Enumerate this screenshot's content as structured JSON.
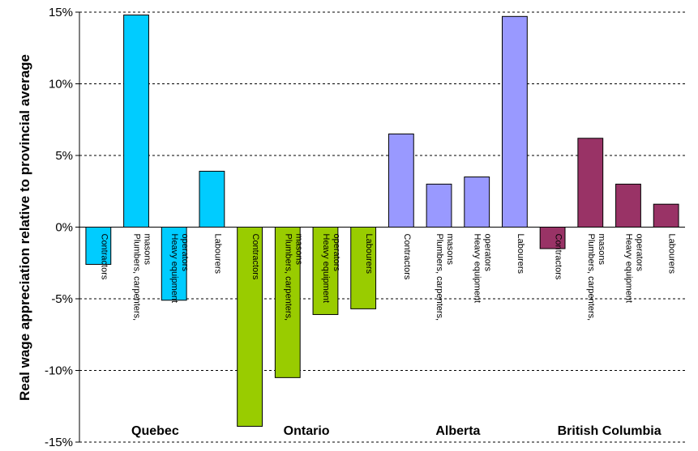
{
  "chart_data": {
    "type": "bar",
    "ylabel": "Real wage appreciation relative to provincial average",
    "xlabel": "",
    "title": "",
    "ylim": [
      -15,
      15
    ],
    "yticks": [
      15,
      10,
      5,
      0,
      -5,
      -10,
      -15
    ],
    "ytick_labels": [
      "15%",
      "10%",
      "5%",
      "0%",
      "-5%",
      "-10%",
      "-15%"
    ],
    "grid": true,
    "groups": [
      {
        "name": "Quebec",
        "color": "#00CCFF",
        "categories": [
          [
            "Contractors"
          ],
          [
            "Plumbers, carpenters,",
            "masons"
          ],
          [
            "Heavy equipment",
            "operators"
          ],
          [
            "Labourers"
          ]
        ],
        "values": [
          -2.6,
          14.8,
          -5.1,
          3.9
        ]
      },
      {
        "name": "Ontario",
        "color": "#99CC00",
        "categories": [
          [
            "Contractors"
          ],
          [
            "Plumbers, carpenters,",
            "masons"
          ],
          [
            "Heavy equipment",
            "operators"
          ],
          [
            "Labourers"
          ]
        ],
        "values": [
          -13.9,
          -10.5,
          -6.1,
          -5.7
        ]
      },
      {
        "name": "Alberta",
        "color": "#9999FF",
        "categories": [
          [
            "Contractors"
          ],
          [
            "Plumbers, carpenters,",
            "masons"
          ],
          [
            "Heavy equipment",
            "operators"
          ],
          [
            "Labourers"
          ]
        ],
        "values": [
          6.5,
          3.0,
          3.5,
          14.7
        ]
      },
      {
        "name": "British Columbia",
        "color": "#993366",
        "categories": [
          [
            "Contractors"
          ],
          [
            "Plumbers, carpenters,",
            "masons"
          ],
          [
            "Heavy equipment",
            "operators"
          ],
          [
            "Labourers"
          ]
        ],
        "values": [
          -1.5,
          6.2,
          3.0,
          1.6
        ]
      }
    ]
  }
}
